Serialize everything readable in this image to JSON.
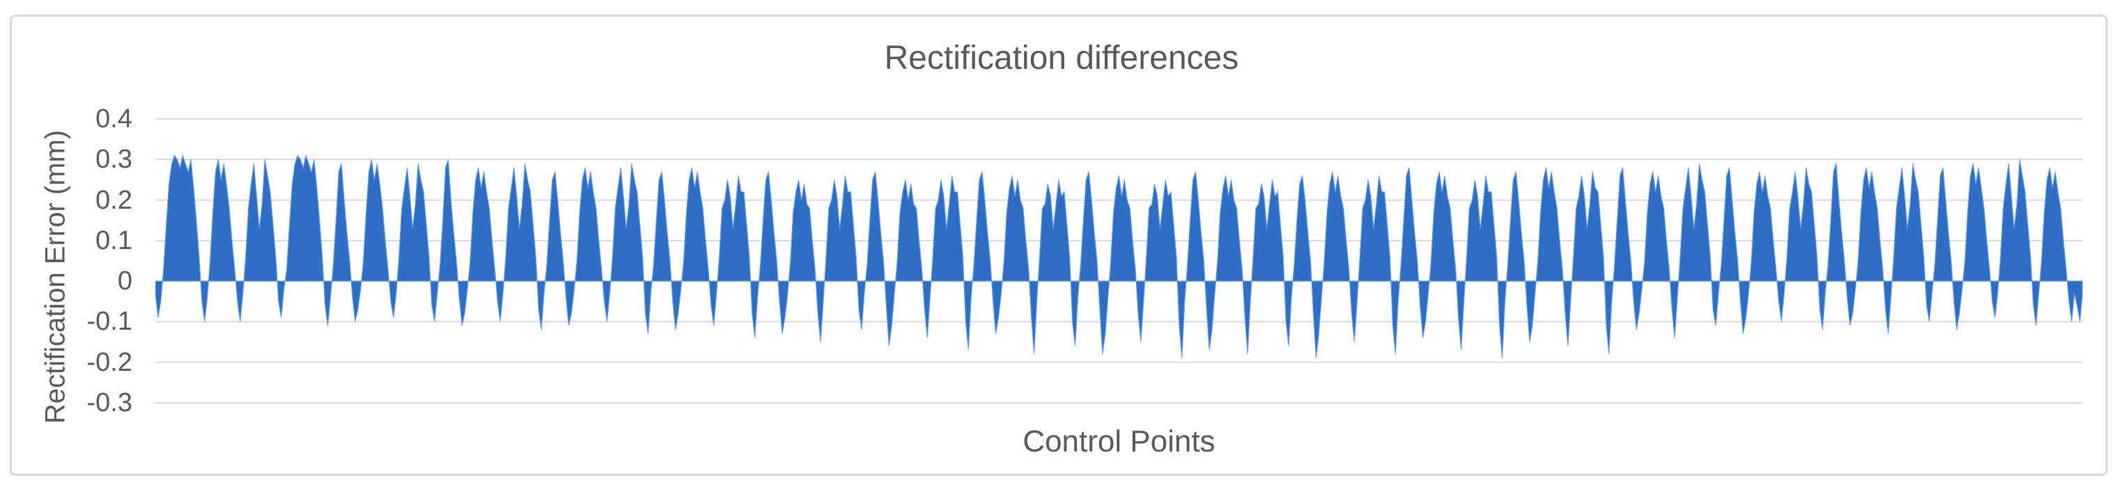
{
  "chart_data": {
    "type": "area",
    "title": "Rectification differences",
    "xlabel": "Control Points",
    "ylabel": "Rectification Error (mm)",
    "ylim": [
      -0.3,
      0.4
    ],
    "yticks": [
      0.4,
      0.3,
      0.2,
      0.1,
      0,
      -0.1,
      -0.2,
      -0.3
    ],
    "ytick_labels": [
      "0.4",
      "0.3",
      "0.2",
      "0.1",
      "0",
      "-0.1",
      "-0.2",
      "-0.3"
    ],
    "x_categories_labeled": false,
    "grid": true,
    "legend": false,
    "series_name": "Rectification error",
    "series_color": "#2E6FC5",
    "series_stroke": "#6FA0DC",
    "gridline_color": "#D9D9D9",
    "text_color": "#595959",
    "frame_border_color": "#D8D8D8",
    "values": [
      -0.03,
      -0.09,
      -0.05,
      0.03,
      0.14,
      0.24,
      0.29,
      0.31,
      0.3,
      0.28,
      0.31,
      0.29,
      0.27,
      0.3,
      0.23,
      0.15,
      0.06,
      -0.05,
      -0.1,
      -0.04,
      0.05,
      0.17,
      0.27,
      0.3,
      0.25,
      0.29,
      0.24,
      0.18,
      0.1,
      0.03,
      -0.05,
      -0.1,
      -0.03,
      0.06,
      0.18,
      0.24,
      0.29,
      0.21,
      0.13,
      0.19,
      0.3,
      0.26,
      0.22,
      0.14,
      0.06,
      -0.05,
      -0.09,
      -0.02,
      0.03,
      0.14,
      0.24,
      0.29,
      0.31,
      0.3,
      0.28,
      0.31,
      0.29,
      0.27,
      0.3,
      0.23,
      0.15,
      0.06,
      -0.06,
      -0.11,
      -0.04,
      0.04,
      0.15,
      0.27,
      0.29,
      0.2,
      0.12,
      0.05,
      -0.04,
      -0.1,
      -0.07,
      -0.02,
      0.05,
      0.17,
      0.27,
      0.3,
      0.25,
      0.29,
      0.24,
      0.18,
      0.1,
      0.03,
      -0.05,
      -0.09,
      -0.03,
      0.06,
      0.18,
      0.23,
      0.28,
      0.21,
      0.13,
      0.19,
      0.29,
      0.25,
      0.22,
      0.14,
      0.06,
      -0.06,
      -0.1,
      -0.03,
      0.04,
      0.15,
      0.28,
      0.3,
      0.2,
      0.12,
      0.05,
      -0.04,
      -0.11,
      -0.08,
      -0.02,
      0.05,
      0.17,
      0.25,
      0.28,
      0.23,
      0.27,
      0.22,
      0.18,
      0.1,
      0.03,
      -0.05,
      -0.1,
      -0.03,
      0.06,
      0.18,
      0.23,
      0.28,
      0.21,
      0.13,
      0.19,
      0.29,
      0.25,
      0.22,
      0.14,
      0.06,
      -0.07,
      -0.12,
      -0.03,
      0.04,
      0.15,
      0.25,
      0.27,
      0.2,
      0.12,
      0.05,
      -0.04,
      -0.11,
      -0.08,
      -0.02,
      0.05,
      0.17,
      0.25,
      0.28,
      0.23,
      0.27,
      0.22,
      0.18,
      0.1,
      0.03,
      -0.05,
      -0.1,
      -0.03,
      0.06,
      0.18,
      0.23,
      0.28,
      0.21,
      0.13,
      0.19,
      0.29,
      0.25,
      0.22,
      0.14,
      0.06,
      -0.08,
      -0.13,
      -0.03,
      0.04,
      0.15,
      0.25,
      0.27,
      0.2,
      0.12,
      0.05,
      -0.05,
      -0.12,
      -0.08,
      -0.02,
      0.05,
      0.17,
      0.25,
      0.28,
      0.23,
      0.27,
      0.22,
      0.18,
      0.1,
      0.03,
      -0.06,
      -0.11,
      -0.03,
      0.06,
      0.18,
      0.2,
      0.25,
      0.21,
      0.13,
      0.19,
      0.26,
      0.22,
      0.22,
      0.14,
      0.06,
      -0.08,
      -0.14,
      -0.04,
      0.04,
      0.15,
      0.25,
      0.27,
      0.2,
      0.12,
      0.05,
      -0.05,
      -0.13,
      -0.09,
      -0.03,
      0.05,
      0.17,
      0.22,
      0.25,
      0.2,
      0.24,
      0.19,
      0.18,
      0.1,
      0.03,
      -0.08,
      -0.15,
      -0.05,
      0.06,
      0.18,
      0.2,
      0.25,
      0.21,
      0.13,
      0.19,
      0.26,
      0.22,
      0.22,
      0.14,
      0.06,
      -0.07,
      -0.12,
      -0.03,
      0.04,
      0.15,
      0.25,
      0.27,
      0.2,
      0.12,
      0.05,
      -0.06,
      -0.16,
      -0.11,
      -0.03,
      0.05,
      0.17,
      0.22,
      0.25,
      0.2,
      0.24,
      0.19,
      0.18,
      0.1,
      0.03,
      -0.07,
      -0.14,
      -0.04,
      0.06,
      0.18,
      0.2,
      0.25,
      0.21,
      0.13,
      0.19,
      0.26,
      0.22,
      0.22,
      0.14,
      0.06,
      -0.1,
      -0.17,
      -0.04,
      0.04,
      0.15,
      0.25,
      0.27,
      0.2,
      0.12,
      0.05,
      -0.05,
      -0.13,
      -0.09,
      -0.03,
      0.05,
      0.17,
      0.23,
      0.26,
      0.21,
      0.25,
      0.2,
      0.18,
      0.1,
      0.03,
      -0.09,
      -0.18,
      -0.05,
      0.06,
      0.18,
      0.19,
      0.24,
      0.21,
      0.13,
      0.19,
      0.25,
      0.21,
      0.22,
      0.14,
      0.06,
      -0.1,
      -0.16,
      -0.04,
      0.04,
      0.15,
      0.25,
      0.27,
      0.2,
      0.12,
      0.05,
      -0.07,
      -0.18,
      -0.13,
      -0.04,
      0.05,
      0.17,
      0.23,
      0.26,
      0.21,
      0.25,
      0.2,
      0.18,
      0.1,
      0.03,
      -0.08,
      -0.15,
      -0.05,
      0.06,
      0.18,
      0.19,
      0.24,
      0.21,
      0.13,
      0.19,
      0.25,
      0.21,
      0.22,
      0.14,
      0.06,
      -0.11,
      -0.19,
      -0.05,
      0.04,
      0.15,
      0.25,
      0.27,
      0.2,
      0.12,
      0.05,
      -0.07,
      -0.17,
      -0.12,
      -0.03,
      0.05,
      0.17,
      0.23,
      0.26,
      0.21,
      0.25,
      0.2,
      0.18,
      0.1,
      0.03,
      -0.09,
      -0.18,
      -0.05,
      0.06,
      0.18,
      0.19,
      0.24,
      0.21,
      0.13,
      0.19,
      0.25,
      0.21,
      0.22,
      0.14,
      0.06,
      -0.1,
      -0.16,
      -0.04,
      0.04,
      0.15,
      0.24,
      0.26,
      0.2,
      0.12,
      0.05,
      -0.08,
      -0.19,
      -0.13,
      -0.04,
      0.05,
      0.17,
      0.24,
      0.27,
      0.22,
      0.26,
      0.21,
      0.18,
      0.1,
      0.03,
      -0.08,
      -0.15,
      -0.05,
      0.06,
      0.18,
      0.2,
      0.25,
      0.21,
      0.13,
      0.19,
      0.26,
      0.22,
      0.22,
      0.14,
      0.06,
      -0.11,
      -0.18,
      -0.05,
      0.04,
      0.15,
      0.26,
      0.28,
      0.2,
      0.12,
      0.05,
      -0.06,
      -0.14,
      -0.1,
      -0.03,
      0.05,
      0.17,
      0.24,
      0.27,
      0.22,
      0.26,
      0.21,
      0.18,
      0.1,
      0.03,
      -0.09,
      -0.17,
      -0.05,
      0.06,
      0.18,
      0.2,
      0.25,
      0.21,
      0.13,
      0.19,
      0.26,
      0.22,
      0.22,
      0.14,
      0.06,
      -0.11,
      -0.19,
      -0.05,
      0.04,
      0.15,
      0.25,
      0.27,
      0.2,
      0.12,
      0.05,
      -0.06,
      -0.15,
      -0.11,
      -0.03,
      0.05,
      0.17,
      0.25,
      0.28,
      0.23,
      0.27,
      0.22,
      0.18,
      0.1,
      0.03,
      -0.08,
      -0.16,
      -0.05,
      0.06,
      0.18,
      0.21,
      0.26,
      0.21,
      0.13,
      0.19,
      0.27,
      0.23,
      0.22,
      0.14,
      0.06,
      -0.11,
      -0.18,
      -0.05,
      0.04,
      0.15,
      0.26,
      0.28,
      0.2,
      0.12,
      0.05,
      -0.05,
      -0.12,
      -0.08,
      -0.02,
      0.05,
      0.17,
      0.24,
      0.27,
      0.22,
      0.26,
      0.21,
      0.18,
      0.1,
      0.03,
      -0.07,
      -0.14,
      -0.04,
      0.06,
      0.18,
      0.23,
      0.28,
      0.21,
      0.13,
      0.19,
      0.29,
      0.25,
      0.22,
      0.14,
      0.06,
      -0.07,
      -0.11,
      -0.03,
      0.04,
      0.15,
      0.26,
      0.28,
      0.2,
      0.12,
      0.05,
      -0.05,
      -0.13,
      -0.09,
      -0.03,
      0.05,
      0.17,
      0.24,
      0.27,
      0.22,
      0.26,
      0.21,
      0.18,
      0.1,
      0.03,
      -0.05,
      -0.1,
      -0.03,
      0.06,
      0.18,
      0.22,
      0.27,
      0.21,
      0.13,
      0.19,
      0.28,
      0.24,
      0.22,
      0.14,
      0.06,
      -0.07,
      -0.12,
      -0.03,
      0.04,
      0.15,
      0.27,
      0.29,
      0.2,
      0.12,
      0.05,
      -0.04,
      -0.11,
      -0.08,
      -0.02,
      0.05,
      0.17,
      0.25,
      0.28,
      0.23,
      0.27,
      0.22,
      0.18,
      0.1,
      0.03,
      -0.07,
      -0.13,
      -0.04,
      0.06,
      0.18,
      0.23,
      0.28,
      0.21,
      0.13,
      0.19,
      0.29,
      0.25,
      0.22,
      0.14,
      0.06,
      -0.06,
      -0.1,
      -0.03,
      0.04,
      0.15,
      0.26,
      0.28,
      0.2,
      0.12,
      0.05,
      -0.05,
      -0.12,
      -0.08,
      -0.02,
      0.05,
      0.17,
      0.26,
      0.29,
      0.24,
      0.28,
      0.23,
      0.18,
      0.1,
      0.03,
      -0.05,
      -0.09,
      -0.03,
      0.06,
      0.18,
      0.24,
      0.29,
      0.21,
      0.13,
      0.19,
      0.3,
      0.26,
      0.22,
      0.14,
      0.06,
      -0.06,
      -0.11,
      -0.03,
      0.05,
      0.17,
      0.25,
      0.28,
      0.23,
      0.27,
      0.22,
      0.18,
      0.1,
      0.03,
      -0.05,
      -0.1,
      -0.03,
      -0.06,
      -0.1,
      -0.03
    ]
  }
}
